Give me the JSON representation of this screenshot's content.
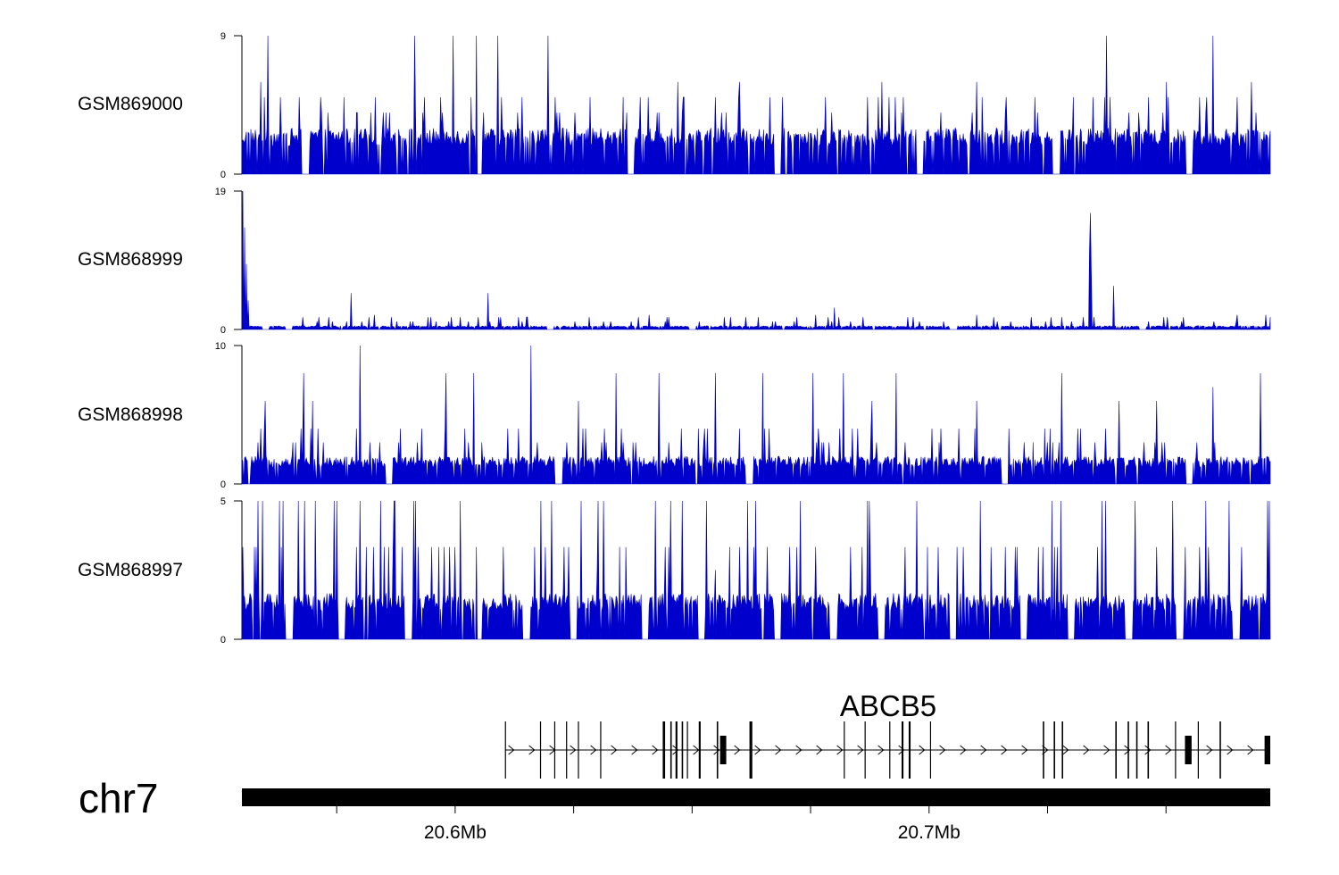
{
  "chart_data": {
    "type": "area",
    "region": {
      "chromosome": "chr7",
      "start_mb": 20.555,
      "end_mb": 20.772
    },
    "axis_ticks_mb": [
      20.575,
      20.6,
      20.625,
      20.65,
      20.675,
      20.7,
      20.725,
      20.75
    ],
    "axis_labels": [
      {
        "pos_mb": 20.6,
        "text": "20.6Mb"
      },
      {
        "pos_mb": 20.7,
        "text": "20.7Mb"
      }
    ],
    "series_color": "#0000CC",
    "tracks": [
      {
        "name": "GSM869000",
        "ylim": [
          0,
          9
        ],
        "ymax_label": "9",
        "ymin_label": "0",
        "baseline": 3,
        "base_step": 1,
        "peaks": [
          [
            20.5605,
            9
          ],
          [
            20.5915,
            9
          ],
          [
            20.5995,
            9
          ],
          [
            20.6045,
            9
          ],
          [
            20.609,
            9
          ],
          [
            20.6195,
            9
          ],
          [
            20.7375,
            9
          ],
          [
            20.76,
            9
          ],
          [
            20.559,
            6
          ],
          [
            20.647,
            6
          ],
          [
            20.66,
            6
          ],
          [
            20.669,
            5
          ],
          [
            20.69,
            6
          ],
          [
            20.71,
            6
          ],
          [
            20.75,
            6
          ],
          [
            20.768,
            6
          ]
        ],
        "dips": [
          [
            20.5685,
            0
          ],
          [
            20.605,
            0
          ],
          [
            20.637,
            0
          ],
          [
            20.668,
            0
          ],
          [
            20.698,
            0
          ],
          [
            20.727,
            0
          ],
          [
            20.755,
            0
          ]
        ]
      },
      {
        "name": "GSM868999",
        "ylim": [
          0,
          19
        ],
        "ymax_label": "19",
        "ymin_label": "0",
        "baseline": 0.5,
        "base_step": 0.6,
        "peaks": [
          [
            20.5552,
            19
          ],
          [
            20.5556,
            14
          ],
          [
            20.556,
            9
          ],
          [
            20.5564,
            4
          ],
          [
            20.578,
            5
          ],
          [
            20.607,
            5
          ],
          [
            20.734,
            16
          ],
          [
            20.7338,
            11
          ],
          [
            20.7343,
            8
          ],
          [
            20.739,
            6
          ],
          [
            20.68,
            3
          ],
          [
            20.676,
            2
          ],
          [
            20.583,
            2
          ],
          [
            20.641,
            2
          ],
          [
            20.71,
            2
          ],
          [
            20.765,
            2
          ],
          [
            20.771,
            2
          ]
        ],
        "dips": [
          [
            20.56,
            0
          ],
          [
            20.565,
            0
          ],
          [
            20.62,
            0
          ],
          [
            20.65,
            0
          ],
          [
            20.705,
            0
          ],
          [
            20.745,
            0
          ]
        ]
      },
      {
        "name": "GSM868998",
        "ylim": [
          0,
          10
        ],
        "ymax_label": "10",
        "ymin_label": "0",
        "baseline": 2,
        "base_step": 1,
        "peaks": [
          [
            20.58,
            10
          ],
          [
            20.616,
            10
          ],
          [
            20.568,
            8
          ],
          [
            20.598,
            8
          ],
          [
            20.604,
            8
          ],
          [
            20.634,
            8
          ],
          [
            20.643,
            8
          ],
          [
            20.655,
            8
          ],
          [
            20.665,
            8
          ],
          [
            20.6755,
            8
          ],
          [
            20.682,
            8
          ],
          [
            20.693,
            8
          ],
          [
            20.728,
            8
          ],
          [
            20.76,
            7
          ],
          [
            20.77,
            8
          ],
          [
            20.56,
            6
          ],
          [
            20.57,
            6
          ],
          [
            20.626,
            6
          ],
          [
            20.688,
            6
          ],
          [
            20.71,
            6
          ],
          [
            20.74,
            6
          ],
          [
            20.748,
            6
          ],
          [
            20.66,
            4
          ]
        ],
        "dips": [
          [
            20.586,
            0
          ],
          [
            20.622,
            0
          ],
          [
            20.662,
            0
          ],
          [
            20.716,
            0
          ],
          [
            20.755,
            0
          ]
        ]
      },
      {
        "name": "GSM868997",
        "ylim": [
          0,
          5
        ],
        "ymax_label": "5",
        "ymin_label": "0",
        "baseline": 1.667,
        "base_step": 1.667,
        "peaks": [
          [
            20.58,
            5
          ],
          [
            20.687,
            5
          ],
          [
            20.558,
            3.33
          ],
          [
            20.586,
            3.33
          ],
          [
            20.5965,
            3.33
          ],
          [
            20.6,
            3.33
          ],
          [
            20.6045,
            3.33
          ],
          [
            20.618,
            3.33
          ],
          [
            20.636,
            3.33
          ],
          [
            20.645,
            3.33
          ],
          [
            20.658,
            3.33
          ],
          [
            20.663,
            3.33
          ],
          [
            20.672,
            3.33
          ],
          [
            20.676,
            3.33
          ],
          [
            20.695,
            3.33
          ],
          [
            20.702,
            3.33
          ],
          [
            20.713,
            3.33
          ],
          [
            20.723,
            3.33
          ],
          [
            20.748,
            3.33
          ],
          [
            20.757,
            3.33
          ],
          [
            20.759,
            3.33
          ],
          [
            20.655,
            2.5
          ],
          [
            20.63,
            2.5
          ]
        ],
        "dips": [
          [
            20.565,
            0
          ],
          [
            20.576,
            0
          ],
          [
            20.59,
            0
          ],
          [
            20.605,
            0
          ],
          [
            20.615,
            0
          ],
          [
            20.625,
            0
          ],
          [
            20.64,
            0
          ],
          [
            20.652,
            0
          ],
          [
            20.668,
            0
          ],
          [
            20.68,
            0
          ],
          [
            20.69,
            0
          ],
          [
            20.705,
            0
          ],
          [
            20.72,
            0
          ],
          [
            20.73,
            0
          ],
          [
            20.742,
            0
          ],
          [
            20.753,
            0
          ],
          [
            20.765,
            0
          ]
        ]
      }
    ],
    "gene": {
      "name": "ABCB5",
      "strand": "+",
      "start_mb": 20.6105,
      "end_mb": 20.772,
      "exons_mb": [
        [
          20.6105,
          20.6107
        ],
        [
          20.6179,
          20.6181
        ],
        [
          20.6209,
          20.6211
        ],
        [
          20.6234,
          20.6236
        ],
        [
          20.6259,
          20.6261
        ],
        [
          20.6306,
          20.6308
        ],
        [
          20.6438,
          20.6443
        ],
        [
          20.6454,
          20.6457
        ],
        [
          20.6465,
          20.6469
        ],
        [
          20.6478,
          20.6481
        ],
        [
          20.6489,
          20.6491
        ],
        [
          20.6514,
          20.6518
        ],
        [
          20.6552,
          20.6555
        ],
        [
          20.6559,
          20.6572
        ],
        [
          20.6621,
          20.6627
        ],
        [
          20.682,
          20.6822
        ],
        [
          20.6864,
          20.6866
        ],
        [
          20.6916,
          20.6918
        ],
        [
          20.6942,
          20.6946
        ],
        [
          20.6957,
          20.6961
        ],
        [
          20.7002,
          20.7004
        ],
        [
          20.724,
          20.7243
        ],
        [
          20.7263,
          20.7266
        ],
        [
          20.728,
          20.7283
        ],
        [
          20.7393,
          20.7396
        ],
        [
          20.7419,
          20.7422
        ],
        [
          20.7437,
          20.744
        ],
        [
          20.7461,
          20.7464
        ],
        [
          20.7519,
          20.7521
        ],
        [
          20.754,
          20.7554
        ],
        [
          20.7567,
          20.7569
        ],
        [
          20.7613,
          20.7616
        ],
        [
          20.7708,
          20.772
        ]
      ]
    },
    "chromosome_label": "chr7"
  }
}
